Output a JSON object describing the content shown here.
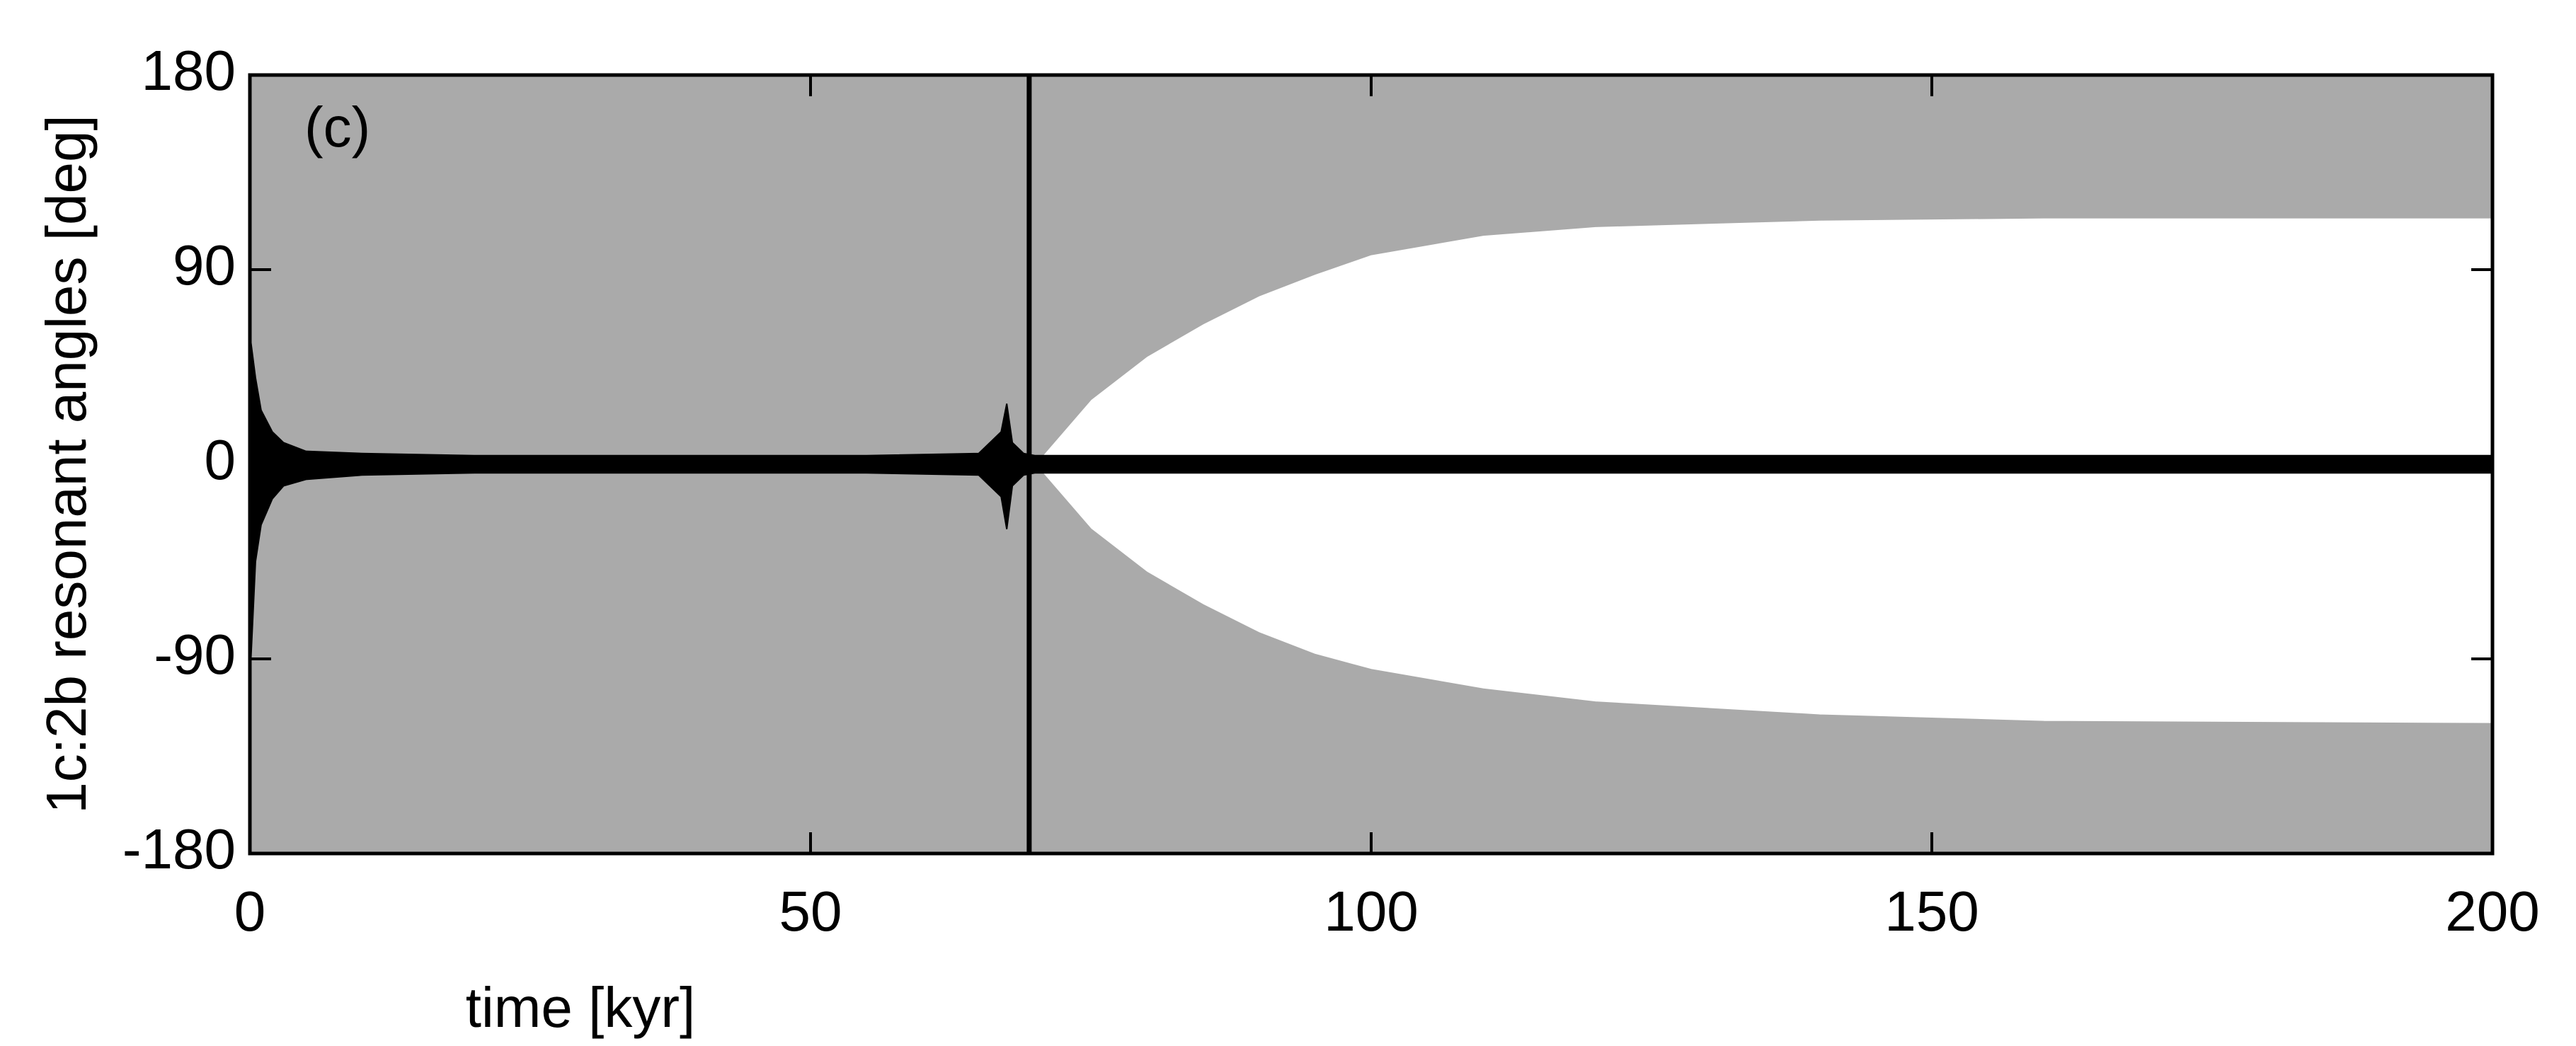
{
  "chart_data": {
    "type": "band",
    "xlabel": "time [kyr]",
    "ylabel": "1c:2b resonant angles [deg]",
    "annotation": "(c)",
    "xlim": [
      0,
      200
    ],
    "xticks": [
      0,
      50,
      100,
      150,
      200
    ],
    "ylim": [
      -180,
      180
    ],
    "yticks": [
      -180,
      -90,
      0,
      90,
      180
    ],
    "vline": 69.5,
    "series": [
      {
        "color": "#aaaaaa",
        "x": [
          0,
          70,
          75,
          80,
          85,
          90,
          95,
          100,
          110,
          120,
          140,
          160,
          200
        ],
        "lower": [
          0,
          0,
          30,
          50,
          65,
          78,
          88,
          97,
          106,
          110,
          113,
          114,
          114
        ],
        "upper": [
          180,
          180,
          180,
          180,
          180,
          180,
          180,
          180,
          180,
          180,
          180,
          180,
          180
        ]
      },
      {
        "color": "#aaaaaa",
        "x": [
          0,
          70,
          75,
          80,
          85,
          90,
          95,
          100,
          110,
          120,
          140,
          160,
          200
        ],
        "lower": [
          -180,
          -180,
          -180,
          -180,
          -180,
          -180,
          -180,
          -180,
          -180,
          -180,
          -180,
          -180,
          -180
        ],
        "upper": [
          0,
          0,
          -30,
          -50,
          -65,
          -78,
          -88,
          -95,
          -104,
          -110,
          -116,
          -119,
          -120
        ]
      },
      {
        "color": "#000000",
        "x": [
          0,
          0.5,
          1,
          2,
          3,
          5,
          10,
          20,
          50,
          55,
          65,
          67,
          67.5,
          68,
          69,
          70,
          100,
          200
        ],
        "lower": [
          -100,
          -45,
          -28,
          -16,
          -10,
          -7,
          -5,
          -4,
          -4,
          -4,
          -5,
          -15,
          -30,
          -10,
          -5,
          -4,
          -4,
          -4
        ],
        "upper": [
          60,
          40,
          25,
          15,
          10,
          6,
          5,
          4,
          4,
          4,
          5,
          15,
          28,
          10,
          5,
          4,
          4,
          4
        ]
      }
    ]
  }
}
